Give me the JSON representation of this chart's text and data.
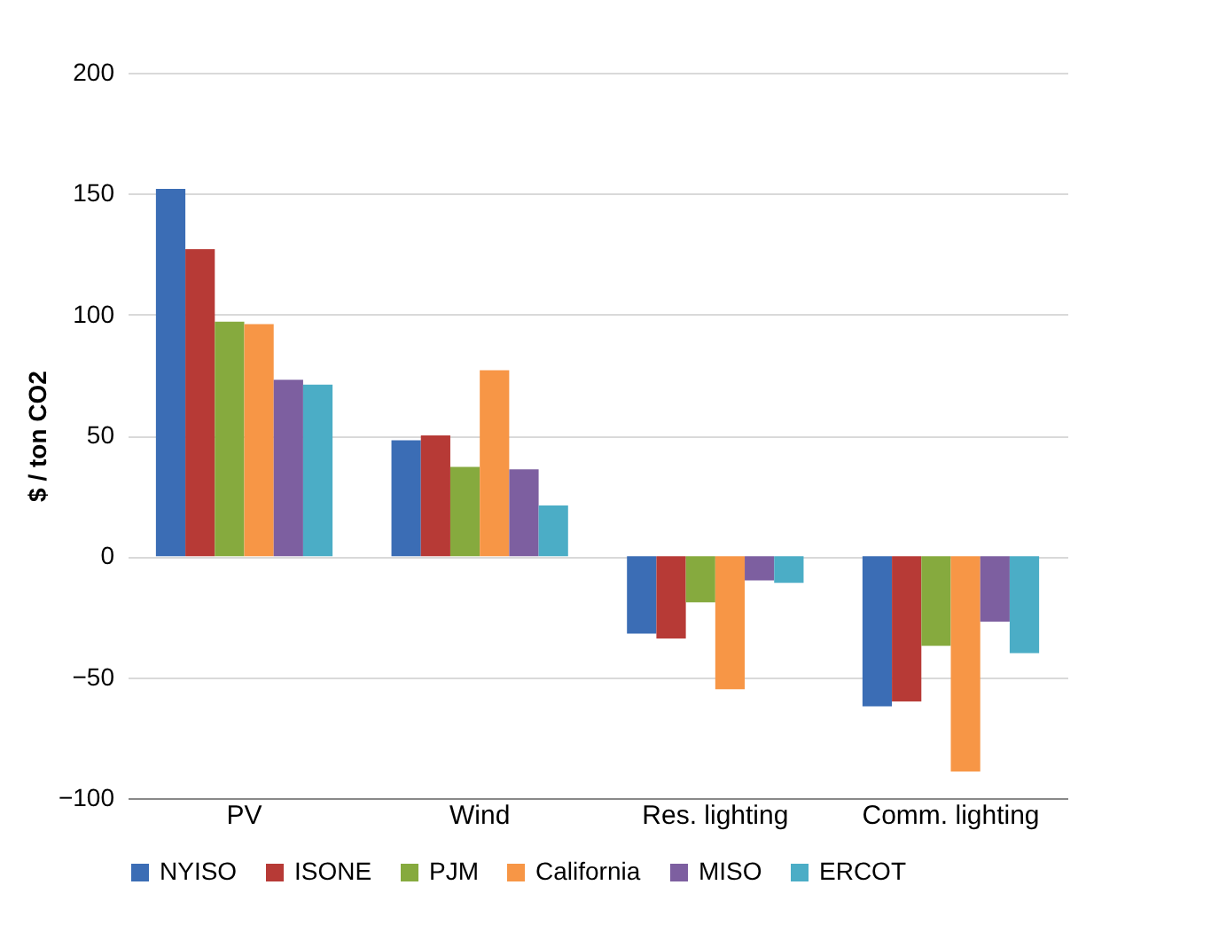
{
  "chart_data": {
    "type": "bar",
    "ylabel": "$ / ton CO2",
    "categories": [
      "PV",
      "Wind",
      "Res. lighting",
      "Comm. lighting"
    ],
    "series": [
      {
        "name": "NYISO",
        "color": "#3b6db5",
        "values": [
          152,
          48,
          -32,
          -62
        ]
      },
      {
        "name": "ISONE",
        "color": "#b73a36",
        "values": [
          127,
          50,
          -34,
          -60
        ]
      },
      {
        "name": "PJM",
        "color": "#86aa3e",
        "values": [
          97,
          37,
          -19,
          -37
        ]
      },
      {
        "name": "California",
        "color": "#f79646",
        "values": [
          96,
          77,
          -55,
          -89
        ]
      },
      {
        "name": "MISO",
        "color": "#7d5fa0",
        "values": [
          73,
          36,
          -10,
          -27
        ]
      },
      {
        "name": "ERCOT",
        "color": "#4badc6",
        "values": [
          71,
          21,
          -11,
          -40
        ]
      }
    ],
    "ylim": [
      -100,
      200
    ],
    "yticks": [
      -100,
      -50,
      0,
      50,
      100,
      150,
      200
    ],
    "grid": "y",
    "legend": "bottom"
  }
}
